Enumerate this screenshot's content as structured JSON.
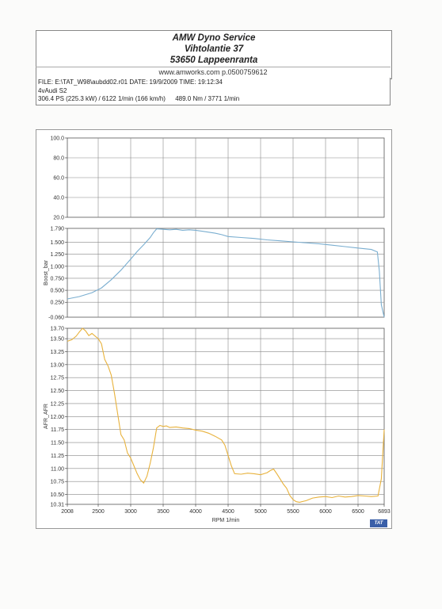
{
  "header": {
    "line1": "AMW Dyno Service",
    "line2": "Vihtolantie 37",
    "line3": "53650 Lappeenranta",
    "web": "www.amworks.com p.0500759612"
  },
  "info": {
    "file": "FILE: E:\\TAT_W98\\aubdd02.r01",
    "date": "DATE: 19/9/2009",
    "time": "TIME: 19:12:34",
    "car": "4vAudi S2",
    "power": "306.4 PS  (225.3 kW) / 6122 1/min (166 km/h)",
    "torque": "489.0 Nm / 3771 1/min"
  },
  "logo": "TAT",
  "chart_data": [
    {
      "type": "line",
      "ylim": [
        20.0,
        100.0
      ],
      "y_ticks": [
        "100.0",
        "80.0",
        "60.0",
        "40.0",
        "20.0"
      ],
      "x_ticks": [
        2008,
        2500,
        3000,
        3500,
        4000,
        4500,
        5000,
        5500,
        6000,
        6500,
        6893
      ],
      "grid": true,
      "series": []
    },
    {
      "type": "line",
      "ylabel": "Boost_bar",
      "ylim": [
        -0.06,
        1.79
      ],
      "y_ticks": [
        "1.790",
        "1.500",
        "1.250",
        "1.000",
        "0.750",
        "0.500",
        "0.250",
        "-0.060"
      ],
      "x_ticks": [
        2008,
        2500,
        3000,
        3500,
        4000,
        4500,
        5000,
        5500,
        6000,
        6500,
        6893
      ],
      "grid": true,
      "color": "#7aaed0",
      "series": [
        {
          "x": [
            2008,
            2200,
            2400,
            2550,
            2700,
            2850,
            3000,
            3100,
            3200,
            3300,
            3350,
            3400,
            3500,
            3600,
            3700,
            3800,
            3900,
            4000,
            4100,
            4200,
            4300,
            4400,
            4500,
            4700,
            4900,
            5100,
            5300,
            5500,
            5700,
            5900,
            6100,
            6300,
            6500,
            6700,
            6790,
            6820,
            6850,
            6893
          ],
          "y": [
            0.32,
            0.37,
            0.45,
            0.55,
            0.72,
            0.92,
            1.15,
            1.31,
            1.45,
            1.6,
            1.7,
            1.78,
            1.77,
            1.76,
            1.77,
            1.75,
            1.76,
            1.75,
            1.73,
            1.71,
            1.69,
            1.66,
            1.62,
            1.6,
            1.58,
            1.55,
            1.53,
            1.51,
            1.49,
            1.47,
            1.44,
            1.41,
            1.38,
            1.35,
            1.3,
            0.9,
            0.2,
            -0.06
          ]
        }
      ]
    },
    {
      "type": "line",
      "xlabel": "RPM 1/min",
      "ylabel": "AFR_AFR",
      "ylim": [
        10.31,
        13.7
      ],
      "y_ticks": [
        "13.70",
        "13.50",
        "13.25",
        "13.00",
        "12.75",
        "12.50",
        "12.25",
        "12.00",
        "11.75",
        "11.50",
        "11.25",
        "11.00",
        "10.75",
        "10.50",
        "10.31"
      ],
      "x_ticks": [
        2008,
        2500,
        3000,
        3500,
        4000,
        4500,
        5000,
        5500,
        6000,
        6500,
        6893
      ],
      "grid": true,
      "color": "#e8b23c",
      "series": [
        {
          "x": [
            2008,
            2080,
            2150,
            2200,
            2250,
            2300,
            2350,
            2400,
            2450,
            2500,
            2550,
            2600,
            2650,
            2700,
            2750,
            2800,
            2850,
            2900,
            2950,
            3000,
            3050,
            3100,
            3150,
            3200,
            3250,
            3300,
            3350,
            3400,
            3450,
            3500,
            3550,
            3600,
            3700,
            3800,
            3900,
            4000,
            4100,
            4200,
            4300,
            4400,
            4450,
            4500,
            4550,
            4600,
            4700,
            4800,
            4900,
            5000,
            5100,
            5150,
            5200,
            5250,
            5300,
            5350,
            5400,
            5450,
            5500,
            5550,
            5600,
            5700,
            5800,
            5900,
            6000,
            6100,
            6200,
            6300,
            6400,
            6500,
            6600,
            6700,
            6800,
            6850,
            6893
          ],
          "y": [
            13.45,
            13.48,
            13.55,
            13.63,
            13.7,
            13.65,
            13.56,
            13.6,
            13.55,
            13.5,
            13.4,
            13.1,
            12.98,
            12.8,
            12.45,
            12.05,
            11.65,
            11.55,
            11.3,
            11.2,
            11.05,
            10.9,
            10.78,
            10.72,
            10.85,
            11.1,
            11.4,
            11.78,
            11.83,
            11.81,
            11.82,
            11.79,
            11.8,
            11.78,
            11.77,
            11.74,
            11.72,
            11.68,
            11.62,
            11.55,
            11.45,
            11.25,
            11.05,
            10.9,
            10.89,
            10.91,
            10.9,
            10.88,
            10.92,
            10.96,
            10.99,
            10.9,
            10.8,
            10.7,
            10.62,
            10.48,
            10.4,
            10.36,
            10.35,
            10.38,
            10.43,
            10.45,
            10.46,
            10.44,
            10.47,
            10.45,
            10.46,
            10.48,
            10.47,
            10.46,
            10.47,
            10.8,
            11.75
          ]
        }
      ]
    }
  ]
}
